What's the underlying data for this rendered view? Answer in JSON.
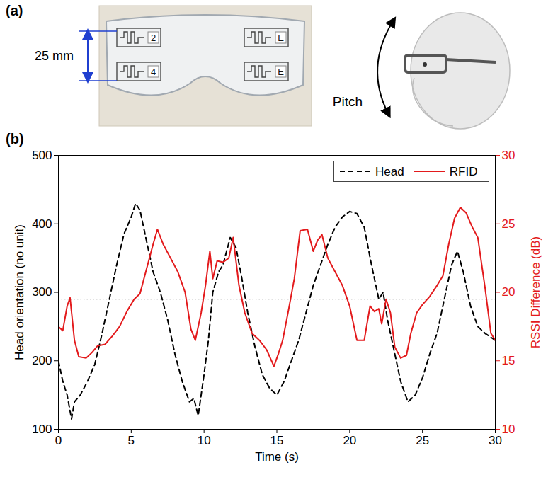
{
  "panel_a": {
    "label": "(a)",
    "dimension_label": "25 mm",
    "tag_labels": [
      "2",
      "4",
      "E",
      "E"
    ],
    "motion_label": "Pitch"
  },
  "chart_data": {
    "type": "line",
    "panel_label": "(b)",
    "xlabel": "Time (s)",
    "ylabel": "Head orientation (no unit)",
    "y2label": "RSSI Difference (dB)",
    "xlim": [
      0,
      30
    ],
    "xticks": [
      0,
      5,
      10,
      15,
      20,
      25,
      30
    ],
    "ylim": [
      100,
      500
    ],
    "yticks": [
      100,
      200,
      300,
      400,
      500
    ],
    "y2lim": [
      10,
      30
    ],
    "y2ticks": [
      10,
      15,
      20,
      25,
      30
    ],
    "legend": "upper right",
    "hlines": [
      {
        "axis": "y",
        "value": 290,
        "line_style": "dotted",
        "color": "#555555"
      }
    ],
    "series": [
      {
        "name": "Head",
        "color": "#000000",
        "line_style": "dashed",
        "axis": "y",
        "x": [
          0,
          0.3,
          0.6,
          0.9,
          1.1,
          1.5,
          2,
          2.5,
          3,
          3.5,
          4,
          4.5,
          5,
          5.3,
          5.6,
          6,
          6.5,
          7,
          7.5,
          8,
          8.5,
          9,
          9.3,
          9.6,
          10,
          10.3,
          10.6,
          11,
          11.3,
          11.8,
          12.2,
          12.6,
          13,
          13.5,
          14,
          14.5,
          15,
          15.5,
          16,
          16.5,
          17,
          17.5,
          18,
          18.5,
          19,
          19.5,
          20,
          20.5,
          21,
          21.5,
          22,
          22.3,
          22.6,
          23,
          23.5,
          24,
          24.5,
          25,
          25.5,
          26,
          26.5,
          27,
          27.4,
          27.8,
          28.3,
          28.8,
          29.3,
          30
        ],
        "values": [
          200,
          170,
          150,
          115,
          140,
          150,
          170,
          195,
          240,
          290,
          340,
          385,
          410,
          430,
          420,
          380,
          330,
          300,
          260,
          210,
          170,
          140,
          145,
          120,
          180,
          230,
          300,
          330,
          340,
          380,
          365,
          320,
          270,
          220,
          180,
          160,
          150,
          170,
          200,
          230,
          270,
          310,
          340,
          370,
          395,
          410,
          418,
          415,
          395,
          340,
          290,
          300,
          260,
          220,
          170,
          140,
          150,
          175,
          210,
          240,
          290,
          340,
          360,
          330,
          280,
          250,
          240,
          230
        ]
      },
      {
        "name": "RFID",
        "color": "#e31a1c",
        "line_style": "solid",
        "axis": "y2",
        "x": [
          0,
          0.3,
          0.6,
          0.8,
          1.1,
          1.4,
          1.9,
          2.3,
          2.7,
          3.2,
          3.7,
          4.2,
          4.7,
          5.2,
          5.6,
          6,
          6.5,
          6.8,
          7.2,
          7.7,
          8.2,
          8.7,
          9.1,
          9.4,
          9.8,
          10.1,
          10.4,
          10.6,
          10.9,
          11.3,
          11.7,
          12,
          12.4,
          12.8,
          13.3,
          13.8,
          14.3,
          14.8,
          15.1,
          15.4,
          15.8,
          16.2,
          16.6,
          17.1,
          17.5,
          17.8,
          18.1,
          18.5,
          19,
          19.5,
          20,
          20.5,
          21,
          21.4,
          21.7,
          22,
          22.2,
          22.5,
          22.8,
          23.1,
          23.5,
          23.9,
          24.2,
          24.6,
          25,
          25.5,
          26,
          26.4,
          26.8,
          27.2,
          27.6,
          28,
          28.4,
          28.8,
          29.3,
          29.7,
          30
        ],
        "values": [
          17.5,
          17.2,
          19,
          19.6,
          16.5,
          15.3,
          15.2,
          15.6,
          16.1,
          16.2,
          16.8,
          17.5,
          18.6,
          19.5,
          19.9,
          21.5,
          23.5,
          24.6,
          23.5,
          22.5,
          21.5,
          20,
          17.3,
          16.5,
          18.5,
          20.5,
          23,
          21,
          22.3,
          22.2,
          22.5,
          24,
          20.5,
          18.5,
          17,
          16.5,
          15.8,
          14.6,
          15.5,
          16.5,
          18.7,
          21,
          24.5,
          24.6,
          23,
          23.8,
          24.2,
          22.5,
          21.5,
          20.5,
          19,
          16.5,
          16.5,
          19,
          18.6,
          18.8,
          17.7,
          19.5,
          18.5,
          16,
          15.2,
          15.4,
          17,
          18.5,
          19.1,
          19.7,
          20.5,
          21.2,
          23.5,
          25.4,
          26.2,
          25.8,
          24.8,
          24,
          20.3,
          17,
          16.5
        ]
      }
    ]
  }
}
